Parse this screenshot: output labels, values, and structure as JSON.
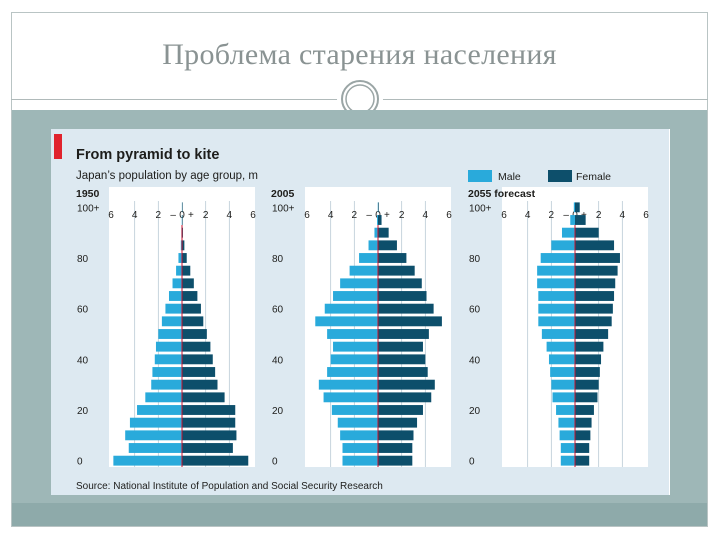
{
  "slide": {
    "title": "Проблема старения населения"
  },
  "colors": {
    "male": "#29aadb",
    "female": "#0d4f6b",
    "axis_line": "#c8102e",
    "panel_bg": "#dde9f1",
    "accent": "#e0232d"
  },
  "chart_data": {
    "type": "bar",
    "subtype": "population-pyramid",
    "title": "From pyramid to kite",
    "subtitle": "Japan’s population by age group, m",
    "legend": [
      {
        "name": "Male",
        "color": "#29aadb"
      },
      {
        "name": "Female",
        "color": "#0d4f6b"
      }
    ],
    "legend_position": "top-right",
    "x_ticks": [
      "6",
      "4",
      "2",
      "–",
      "0",
      "+",
      "2",
      "4",
      "6"
    ],
    "x_range": [
      -6,
      6
    ],
    "y_ticks": [
      "0",
      "20",
      "40",
      "60",
      "80",
      "100+"
    ],
    "age_groups": [
      "0-4",
      "5-9",
      "10-14",
      "15-19",
      "20-24",
      "25-29",
      "30-34",
      "35-39",
      "40-44",
      "45-49",
      "50-54",
      "55-59",
      "60-64",
      "65-69",
      "70-74",
      "75-79",
      "80-84",
      "85-89",
      "90-94",
      "95-99",
      "100+"
    ],
    "source": "Source: National Institute of Population and Social Security Research",
    "panels": [
      {
        "label": "1950",
        "male": [
          5.8,
          4.5,
          4.8,
          4.4,
          3.8,
          3.1,
          2.6,
          2.5,
          2.3,
          2.2,
          2.0,
          1.7,
          1.4,
          1.1,
          0.8,
          0.5,
          0.3,
          0.1,
          0.05,
          0.02,
          0.01
        ],
        "female": [
          5.6,
          4.3,
          4.6,
          4.5,
          4.5,
          3.6,
          3.0,
          2.8,
          2.6,
          2.4,
          2.1,
          1.8,
          1.6,
          1.3,
          1.0,
          0.7,
          0.4,
          0.2,
          0.08,
          0.03,
          0.01
        ]
      },
      {
        "label": "2005",
        "male": [
          3.0,
          3.0,
          3.2,
          3.4,
          3.9,
          4.6,
          5.0,
          4.3,
          4.0,
          3.8,
          4.3,
          5.3,
          4.5,
          3.8,
          3.2,
          2.4,
          1.6,
          0.8,
          0.3,
          0.08,
          0.02
        ],
        "female": [
          2.9,
          2.9,
          3.0,
          3.3,
          3.8,
          4.5,
          4.8,
          4.2,
          4.0,
          3.8,
          4.3,
          5.4,
          4.7,
          4.1,
          3.7,
          3.1,
          2.4,
          1.6,
          0.9,
          0.3,
          0.06
        ]
      },
      {
        "label": "2055 forecast",
        "male": [
          1.2,
          1.2,
          1.3,
          1.4,
          1.6,
          1.9,
          2.0,
          2.1,
          2.2,
          2.4,
          2.8,
          3.1,
          3.1,
          3.1,
          3.2,
          3.2,
          2.9,
          2.0,
          1.1,
          0.4,
          0.1
        ],
        "female": [
          1.2,
          1.2,
          1.3,
          1.4,
          1.6,
          1.9,
          2.0,
          2.1,
          2.2,
          2.4,
          2.8,
          3.1,
          3.2,
          3.3,
          3.4,
          3.6,
          3.8,
          3.3,
          2.0,
          0.9,
          0.4
        ]
      }
    ]
  }
}
